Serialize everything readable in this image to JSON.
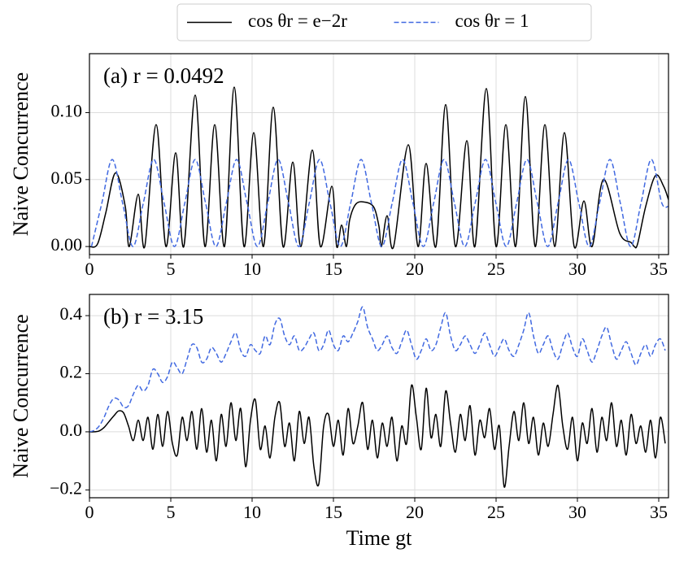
{
  "chart_data": [
    {
      "type": "line",
      "annotation": "(a) r = 0.0492",
      "ylabel": "Naive Concurrence",
      "legend": "upper center",
      "xlim": [
        0,
        35.6
      ],
      "xticks": [
        0,
        5,
        10,
        15,
        20,
        25,
        30,
        35
      ],
      "ylim": [
        -0.006,
        0.144
      ],
      "yticks": [
        {
          "value": 0,
          "label": "0.00"
        },
        {
          "value": 0.05,
          "label": "0.05"
        },
        {
          "value": 0.1,
          "label": "0.10"
        }
      ],
      "grid": true,
      "series": [
        {
          "name": "cos θr = e−2r",
          "color": "#000000",
          "linestyle": "solid",
          "x": [
            0,
            0.5,
            1,
            1.6,
            2.2,
            2.45,
            3.0,
            3.4,
            4.1,
            4.7,
            5.3,
            5.8,
            6.5,
            7.1,
            7.7,
            8.3,
            8.9,
            9.5,
            10.1,
            10.7,
            11.3,
            11.9,
            12.5,
            13.0,
            13.7,
            14.2,
            14.9,
            15.2,
            15.5,
            15.8,
            16.0,
            16.4,
            17.0,
            17.5,
            17.8,
            17.95,
            18.3,
            18.7,
            19.6,
            20.2,
            20.7,
            21.3,
            21.9,
            22.5,
            23.2,
            23.7,
            24.4,
            25.0,
            25.6,
            26.2,
            26.8,
            27.4,
            28.0,
            28.6,
            29.2,
            29.8,
            30.4,
            30.9,
            31.6,
            32.6,
            33.3,
            33.5,
            33.7,
            34.2,
            34.8,
            35.3,
            35.6
          ],
          "values": [
            0,
            0.002,
            0.025,
            0.055,
            0.03,
            0,
            0.039,
            0,
            0.091,
            0,
            0.07,
            0,
            0.113,
            0,
            0.091,
            0,
            0.119,
            0,
            0.085,
            0,
            0.104,
            0,
            0.063,
            0,
            0.072,
            0,
            0.045,
            0,
            0.016,
            0,
            0.02,
            0.032,
            0.033,
            0.029,
            0.015,
            0,
            0.023,
            0,
            0.076,
            0,
            0.062,
            0,
            0.106,
            0,
            0.079,
            0,
            0.118,
            0,
            0.091,
            0,
            0.112,
            0,
            0.091,
            0,
            0.085,
            0,
            0.034,
            0,
            0.05,
            0.01,
            0.003,
            0,
            0.002,
            0.03,
            0.053,
            0.045,
            0.035
          ]
        },
        {
          "name": "cos θr = 1",
          "color": "#4169e1",
          "linestyle": "dashed",
          "x": [
            0.125,
            0.7625,
            1.4,
            2.0375,
            2.675,
            3.3125,
            3.95,
            4.5875,
            5.225,
            5.8625,
            6.5,
            7.1375,
            7.775,
            8.4125,
            9.05,
            9.6875,
            10.325,
            10.9625,
            11.6,
            12.2375,
            12.875,
            13.5125,
            14.15,
            14.7875,
            15.425,
            16.0625,
            16.7,
            17.3375,
            17.975,
            18.6125,
            19.25,
            19.8875,
            20.525,
            21.1625,
            21.8,
            22.4375,
            23.075,
            23.7125,
            24.35,
            24.9875,
            25.625,
            26.2625,
            26.9,
            27.5375,
            28.175,
            28.8125,
            29.45,
            30.0875,
            30.725,
            31.3625,
            32.0,
            32.6375,
            33.275,
            33.9125,
            34.55,
            35.1875,
            35.6
          ],
          "values": [
            0,
            0.0325,
            0.065,
            0.0325,
            0,
            0.0325,
            0.065,
            0.0325,
            0,
            0.0325,
            0.065,
            0.0325,
            0,
            0.0325,
            0.065,
            0.0325,
            0,
            0.0325,
            0.065,
            0.0325,
            0,
            0.0325,
            0.065,
            0.0325,
            0,
            0.0325,
            0.065,
            0.0325,
            0,
            0.0325,
            0.065,
            0.0325,
            0,
            0.0325,
            0.065,
            0.0325,
            0,
            0.0325,
            0.065,
            0.0325,
            0,
            0.0325,
            0.065,
            0.0325,
            0,
            0.0325,
            0.065,
            0.0325,
            0,
            0.0325,
            0.065,
            0.0325,
            0,
            0.0325,
            0.065,
            0.0325,
            0.03
          ]
        }
      ]
    },
    {
      "type": "line",
      "annotation": "(b) r = 3.15",
      "ylabel": "Naive Concurrence",
      "xlabel": "Time gt",
      "xlim": [
        0,
        35.6
      ],
      "xticks": [
        0,
        5,
        10,
        15,
        20,
        25,
        30,
        35
      ],
      "ylim": [
        -0.227,
        0.473
      ],
      "yticks": [
        {
          "value": -0.2,
          "label": "−0.2"
        },
        {
          "value": 0,
          "label": "0.0"
        },
        {
          "value": 0.2,
          "label": "0.2"
        },
        {
          "value": 0.4,
          "label": "0.4"
        }
      ],
      "grid": true,
      "x": [
        0,
        0.3,
        0.6,
        0.9,
        1.2,
        1.5,
        1.8,
        2.1,
        2.4,
        2.7,
        3.0,
        3.3,
        3.6,
        3.9,
        4.2,
        4.5,
        4.8,
        5.1,
        5.4,
        5.7,
        6.0,
        6.3,
        6.6,
        6.9,
        7.2,
        7.5,
        7.8,
        8.1,
        8.4,
        8.7,
        9.0,
        9.3,
        9.6,
        9.9,
        10.2,
        10.5,
        10.8,
        11.1,
        11.4,
        11.7,
        12.0,
        12.3,
        12.6,
        12.9,
        13.2,
        13.5,
        13.8,
        14.1,
        14.4,
        14.7,
        15.0,
        15.3,
        15.6,
        15.9,
        16.2,
        16.5,
        16.8,
        17.1,
        17.4,
        17.7,
        18.0,
        18.3,
        18.6,
        18.9,
        19.2,
        19.5,
        19.8,
        20.1,
        20.4,
        20.7,
        21.0,
        21.3,
        21.6,
        21.9,
        22.2,
        22.5,
        22.8,
        23.1,
        23.4,
        23.7,
        24.0,
        24.3,
        24.6,
        24.9,
        25.2,
        25.5,
        25.8,
        26.1,
        26.4,
        26.7,
        27.0,
        27.3,
        27.6,
        27.9,
        28.2,
        28.5,
        28.8,
        29.1,
        29.4,
        29.7,
        30.0,
        30.3,
        30.6,
        30.9,
        31.2,
        31.5,
        31.8,
        32.1,
        32.4,
        32.7,
        33.0,
        33.3,
        33.6,
        33.9,
        34.2,
        34.5,
        34.8,
        35.1,
        35.4
      ],
      "series": [
        {
          "color": "#000000",
          "linestyle": "solid",
          "values": [
            0,
            0,
            0.003,
            0.015,
            0.035,
            0.055,
            0.072,
            0.065,
            0.02,
            -0.03,
            0.04,
            -0.03,
            0.05,
            -0.06,
            0.06,
            -0.05,
            0.07,
            -0.04,
            -0.08,
            0.05,
            -0.03,
            0.07,
            -0.06,
            0.08,
            -0.07,
            0.04,
            -0.1,
            0.06,
            -0.05,
            0.1,
            -0.03,
            0.08,
            -0.12,
            0.04,
            0.11,
            -0.06,
            0.02,
            -0.09,
            0.05,
            0.1,
            -0.05,
            0.03,
            -0.1,
            0.07,
            -0.04,
            0.05,
            -0.12,
            -0.18,
            0.02,
            0.06,
            -0.05,
            0.04,
            -0.08,
            0.08,
            -0.04,
            0.02,
            0.1,
            -0.06,
            0.04,
            -0.09,
            0.03,
            -0.05,
            0.05,
            -0.1,
            0.02,
            -0.04,
            0.16,
            0.05,
            -0.06,
            0.15,
            -0.02,
            0.06,
            -0.05,
            0.14,
            0.03,
            -0.07,
            0.06,
            -0.03,
            0.09,
            -0.08,
            0.04,
            -0.02,
            0.08,
            -0.06,
            0.02,
            -0.19,
            -0.05,
            0.07,
            -0.03,
            0.1,
            -0.04,
            0.05,
            -0.08,
            0.03,
            -0.05,
            0.06,
            0.16,
            0.02,
            -0.06,
            0.05,
            -0.1,
            0.03,
            -0.04,
            0.08,
            -0.07,
            0.05,
            -0.03,
            0.1,
            -0.05,
            0.04,
            -0.08,
            0.06,
            -0.04,
            0.02,
            -0.07,
            0.04,
            -0.09,
            0.05,
            -0.04
          ]
        },
        {
          "color": "#4169e1",
          "linestyle": "dashed",
          "values": [
            0,
            0.005,
            0.02,
            0.05,
            0.09,
            0.115,
            0.11,
            0.085,
            0.09,
            0.13,
            0.16,
            0.14,
            0.16,
            0.215,
            0.2,
            0.17,
            0.19,
            0.24,
            0.22,
            0.2,
            0.25,
            0.3,
            0.29,
            0.24,
            0.25,
            0.29,
            0.27,
            0.24,
            0.27,
            0.31,
            0.34,
            0.28,
            0.26,
            0.3,
            0.28,
            0.27,
            0.33,
            0.3,
            0.37,
            0.39,
            0.33,
            0.3,
            0.33,
            0.28,
            0.29,
            0.32,
            0.34,
            0.28,
            0.3,
            0.35,
            0.3,
            0.28,
            0.33,
            0.31,
            0.34,
            0.38,
            0.43,
            0.36,
            0.32,
            0.28,
            0.3,
            0.33,
            0.29,
            0.27,
            0.31,
            0.35,
            0.3,
            0.25,
            0.28,
            0.32,
            0.28,
            0.3,
            0.36,
            0.41,
            0.33,
            0.28,
            0.3,
            0.33,
            0.3,
            0.27,
            0.3,
            0.34,
            0.3,
            0.26,
            0.29,
            0.32,
            0.28,
            0.26,
            0.3,
            0.35,
            0.41,
            0.33,
            0.27,
            0.3,
            0.33,
            0.28,
            0.25,
            0.3,
            0.34,
            0.29,
            0.26,
            0.32,
            0.28,
            0.24,
            0.28,
            0.33,
            0.36,
            0.3,
            0.25,
            0.28,
            0.31,
            0.27,
            0.23,
            0.27,
            0.3,
            0.26,
            0.3,
            0.32,
            0.28
          ]
        }
      ]
    }
  ]
}
